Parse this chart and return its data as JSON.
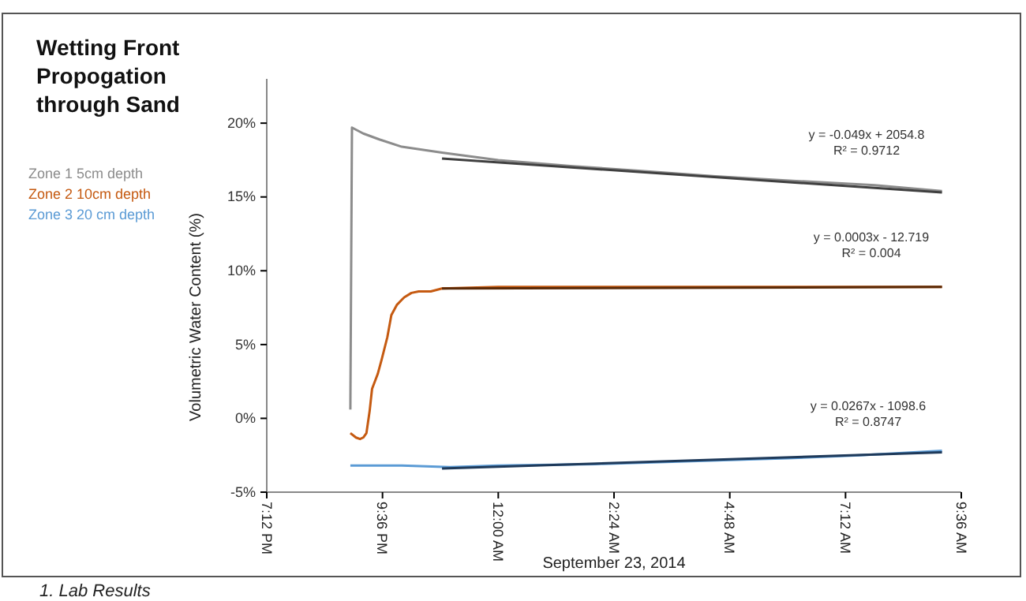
{
  "chart_data": {
    "type": "line",
    "title": "Wetting Front Propogation through Sand",
    "xlabel": "September 23, 2014",
    "ylabel": "Volumetric Water Content (%)",
    "xlim": [
      "2014-09-22T19:12",
      "2014-09-23T09:36"
    ],
    "xticks": [
      {
        "value": "2014-09-22T19:12",
        "label": "7:12 PM"
      },
      {
        "value": "2014-09-22T21:36",
        "label": "9:36 PM"
      },
      {
        "value": "2014-09-23T00:00",
        "label": "12:00 AM"
      },
      {
        "value": "2014-09-23T02:24",
        "label": "2:24 AM"
      },
      {
        "value": "2014-09-23T04:48",
        "label": "4:48 AM"
      },
      {
        "value": "2014-09-23T07:12",
        "label": "7:12 AM"
      },
      {
        "value": "2014-09-23T09:36",
        "label": "9:36 AM"
      }
    ],
    "ylim": [
      -5,
      23
    ],
    "yticks": [
      {
        "value": -5,
        "label": "-5%"
      },
      {
        "value": 0,
        "label": "0%"
      },
      {
        "value": 5,
        "label": "5%"
      },
      {
        "value": 10,
        "label": "10%"
      },
      {
        "value": 15,
        "label": "15%"
      },
      {
        "value": 20,
        "label": "20%"
      }
    ],
    "grid": false,
    "legend": "left",
    "series": [
      {
        "name": "Zone 1  5cm depth",
        "color": "#8c8c8c",
        "x": [
          "2014-09-22T20:56",
          "2014-09-22T20:58",
          "2014-09-22T21:12",
          "2014-09-22T21:32",
          "2014-09-22T22:00",
          "2014-09-22T22:50",
          "2014-09-23T00:00",
          "2014-09-23T01:30",
          "2014-09-23T02:48",
          "2014-09-23T04:30",
          "2014-09-23T06:06",
          "2014-09-23T07:48",
          "2014-09-23T09:12"
        ],
        "values": [
          0.6,
          19.7,
          19.3,
          18.9,
          18.4,
          18.0,
          17.5,
          17.1,
          16.8,
          16.4,
          16.1,
          15.8,
          15.4
        ]
      },
      {
        "name": "Zone 2 10cm depth",
        "color": "#c55a11",
        "x": [
          "2014-09-22T20:56",
          "2014-09-22T21:03",
          "2014-09-22T21:08",
          "2014-09-22T21:12",
          "2014-09-22T21:16",
          "2014-09-22T21:20",
          "2014-09-22T21:23",
          "2014-09-22T21:30",
          "2014-09-22T21:35",
          "2014-09-22T21:42",
          "2014-09-22T21:47",
          "2014-09-22T21:54",
          "2014-09-22T22:03",
          "2014-09-22T22:12",
          "2014-09-22T22:21",
          "2014-09-22T22:36",
          "2014-09-22T22:50",
          "2014-09-23T00:00",
          "2014-09-23T02:00",
          "2014-09-23T04:00",
          "2014-09-23T06:00",
          "2014-09-23T08:00",
          "2014-09-23T09:12"
        ],
        "values": [
          -1.0,
          -1.3,
          -1.4,
          -1.3,
          -1.0,
          0.5,
          2.0,
          3.0,
          4.0,
          5.5,
          7.0,
          7.7,
          8.2,
          8.5,
          8.6,
          8.6,
          8.8,
          8.9,
          8.9,
          8.9,
          8.9,
          8.9,
          8.9
        ]
      },
      {
        "name": "Zone 3 20 cm depth",
        "color": "#5b9bd5",
        "x": [
          "2014-09-22T20:56",
          "2014-09-22T22:00",
          "2014-09-22T23:00",
          "2014-09-23T00:00",
          "2014-09-23T02:00",
          "2014-09-23T04:00",
          "2014-09-23T06:00",
          "2014-09-23T07:30",
          "2014-09-23T09:12"
        ],
        "values": [
          -3.2,
          -3.2,
          -3.3,
          -3.2,
          -3.1,
          -2.9,
          -2.7,
          -2.5,
          -2.2
        ]
      },
      {
        "color": "#404040",
        "x": [
          "2014-09-22T22:50",
          "2014-09-23T09:12"
        ],
        "values": [
          17.6,
          15.3
        ]
      },
      {
        "color": "#5a2a08",
        "x": [
          "2014-09-22T22:50",
          "2014-09-23T09:12"
        ],
        "values": [
          8.8,
          8.9
        ]
      },
      {
        "color": "#1f3a5a",
        "x": [
          "2014-09-22T22:50",
          "2014-09-23T09:12"
        ],
        "values": [
          -3.4,
          -2.3
        ]
      }
    ],
    "annotations": [
      "y = -0.049x + 2054.8",
      "R² = 0.9712",
      "y = 0.0003x - 12.719",
      "R² = 0.004",
      "y = 0.0267x - 1098.6",
      "R² = 0.8747",
      "1. Lab Results"
    ]
  }
}
